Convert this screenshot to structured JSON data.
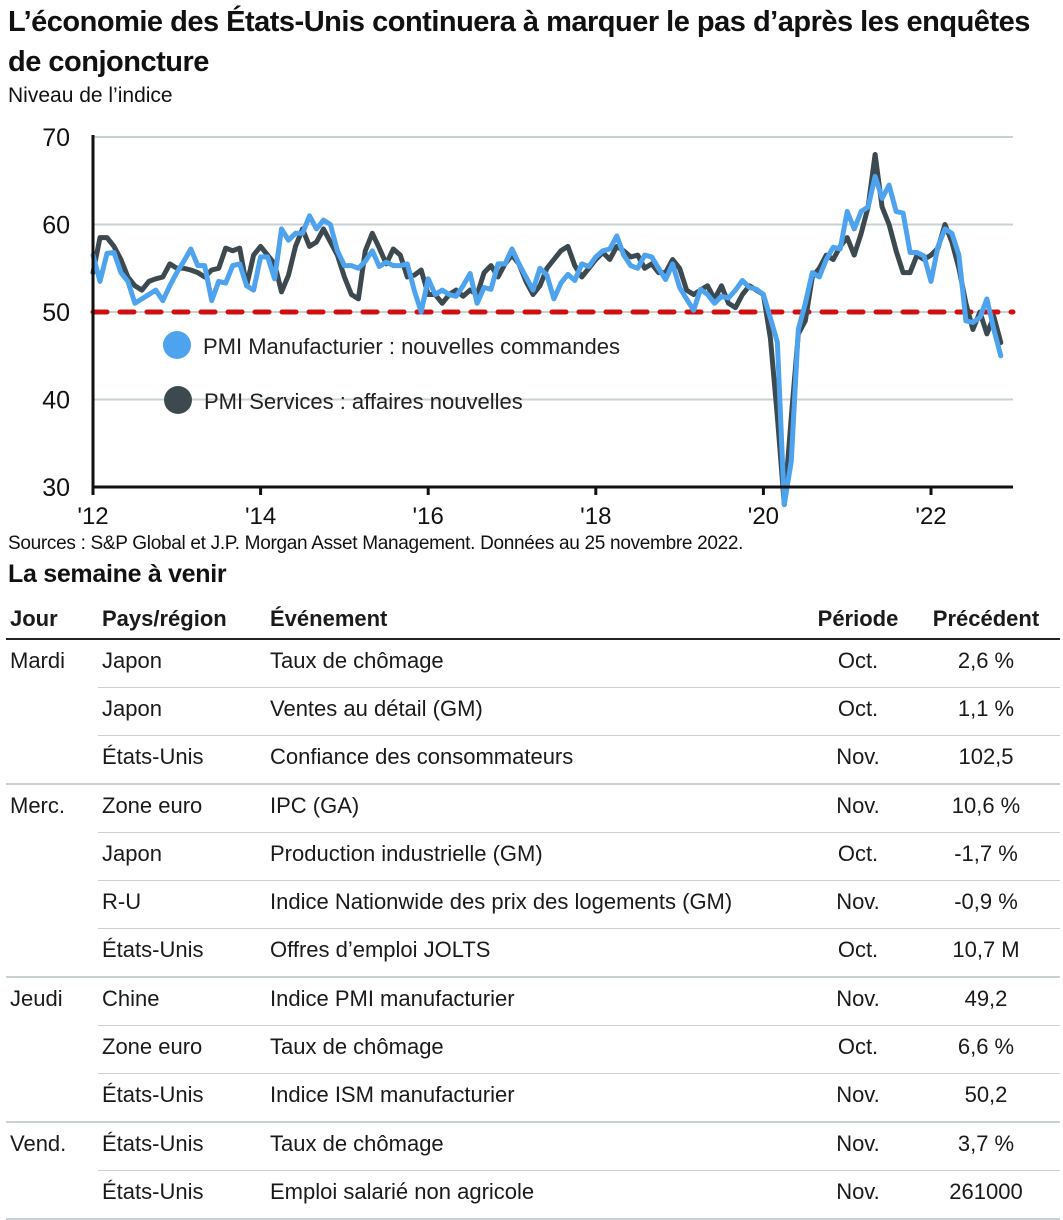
{
  "header": {
    "title": "L’économie des États-Unis continuera à marquer le pas d’après les enquêtes de conjoncture",
    "subtitle": "Niveau de l’indice"
  },
  "source": "Sources : S&P Global et J.P. Morgan Asset Management. Données au 25 novembre 2022.",
  "colors": {
    "manufacturing": "#4ea3ef",
    "services": "#3c4a50",
    "threshold": "#d01010",
    "grid": "#c8d2d2",
    "axis": "#111111"
  },
  "chart_data": {
    "type": "line",
    "title": "L’économie des États-Unis continuera à marquer le pas d’après les enquêtes de conjoncture",
    "ylabel": "Niveau de l’indice",
    "xlabel": "",
    "ylim": [
      30,
      70
    ],
    "yticks": [
      30,
      40,
      50,
      60,
      70
    ],
    "xlim": [
      "2012-01",
      "2022-12"
    ],
    "xticks": [
      {
        "year": 2012,
        "label": "'12"
      },
      {
        "year": 2014,
        "label": "'14"
      },
      {
        "year": 2016,
        "label": "'16"
      },
      {
        "year": 2018,
        "label": "'18"
      },
      {
        "year": 2020,
        "label": "'20"
      },
      {
        "year": 2022,
        "label": "'22"
      }
    ],
    "grid": true,
    "legend_position": "center-left",
    "reference_line": {
      "value": 50,
      "style": "dashed"
    },
    "x_start": "2012-01",
    "frequency": "monthly",
    "series": [
      {
        "name": "PMI Manufacturier : nouvelles commandes",
        "key": "manufacturing",
        "values": [
          56.5,
          53.5,
          56.7,
          56.8,
          54.5,
          53.5,
          51.0,
          51.5,
          52.0,
          52.5,
          51.3,
          53.0,
          54.5,
          55.8,
          57.2,
          55.3,
          55.3,
          51.3,
          53.5,
          53.3,
          55.3,
          55.5,
          53.0,
          52.5,
          56.3,
          56.3,
          53.8,
          59.5,
          58.2,
          59.0,
          59.0,
          61.0,
          59.5,
          60.5,
          60.0,
          57.0,
          55.3,
          55.3,
          55.0,
          55.8,
          57.0,
          55.2,
          55.7,
          55.3,
          55.3,
          55.5,
          52.5,
          50.0,
          53.8,
          52.0,
          52.5,
          52.0,
          51.8,
          53.0,
          54.4,
          51.0,
          52.8,
          52.6,
          55.5,
          55.5,
          57.2,
          55.5,
          54.0,
          52.5,
          55.0,
          54.2,
          51.5,
          53.3,
          54.3,
          53.6,
          55.5,
          55.2,
          56.3,
          57.0,
          57.2,
          58.7,
          56.5,
          55.3,
          55.0,
          56.5,
          56.3,
          55.0,
          53.7,
          55.5,
          52.8,
          51.5,
          50.2,
          52.6,
          52.0,
          51.0,
          51.8,
          51.6,
          52.5,
          53.6,
          52.8,
          52.6,
          52.0,
          49.3,
          46.5,
          28.0,
          33.0,
          48.0,
          51.0,
          54.5,
          54.0,
          56.0,
          57.4,
          57.2,
          61.5,
          59.5,
          61.5,
          62.0,
          65.5,
          63.0,
          64.5,
          61.5,
          61.3,
          56.8,
          56.8,
          56.4,
          53.5,
          57.5,
          59.5,
          59.0,
          56.5,
          49.0,
          48.8,
          49.4,
          51.5,
          48.0,
          45.0
        ]
      },
      {
        "name": "PMI Services : affaires nouvelles",
        "key": "services",
        "values": [
          54.5,
          58.5,
          58.5,
          57.5,
          56.0,
          54.0,
          53.0,
          52.5,
          53.5,
          53.8,
          54.0,
          55.5,
          55.0,
          55.0,
          54.8,
          54.5,
          54.0,
          54.8,
          55.0,
          57.3,
          57.0,
          57.3,
          53.0,
          56.5,
          57.5,
          56.5,
          55.5,
          52.3,
          54.2,
          57.5,
          59.5,
          57.5,
          58.0,
          59.5,
          58.0,
          56.5,
          54.0,
          52.0,
          51.5,
          57.0,
          59.0,
          57.3,
          55.5,
          57.2,
          56.5,
          54.0,
          54.2,
          54.8,
          52.0,
          52.0,
          51.0,
          52.0,
          52.5,
          51.8,
          52.5,
          52.0,
          54.5,
          55.3,
          54.0,
          55.5,
          56.5,
          55.5,
          53.5,
          52.0,
          53.0,
          55.0,
          56.0,
          57.0,
          57.5,
          55.3,
          54.0,
          55.0,
          56.0,
          56.8,
          56.0,
          57.5,
          57.0,
          56.3,
          56.5,
          55.0,
          55.5,
          54.5,
          54.5,
          56.0,
          55.0,
          52.5,
          52.0,
          52.5,
          53.0,
          51.5,
          53.0,
          51.0,
          50.5,
          52.0,
          53.0,
          52.5,
          52.0,
          47.0,
          38.0,
          28.0,
          38.0,
          47.5,
          49.0,
          54.0,
          55.0,
          56.5,
          56.0,
          57.5,
          58.5,
          56.5,
          59.0,
          62.0,
          68.0,
          62.0,
          60.0,
          57.0,
          54.5,
          54.5,
          56.5,
          56.0,
          56.5,
          57.3,
          60.0,
          58.0,
          55.0,
          51.0,
          48.0,
          50.0,
          47.5,
          49.5,
          46.5
        ]
      }
    ]
  },
  "legend": {
    "manufacturing": "PMI Manufacturier : nouvelles commandes",
    "services": "PMI Services : affaires nouvelles"
  },
  "table": {
    "section_title": "La semaine à venir",
    "headers": {
      "day": "Jour",
      "country": "Pays/région",
      "event": "Événement",
      "period": "Période",
      "previous": "Précédent"
    },
    "rows": [
      {
        "day": "Mardi",
        "country": "Japon",
        "event": "Taux de chômage",
        "period": "Oct.",
        "previous": "2,6 %"
      },
      {
        "day": "",
        "country": "Japon",
        "event": "Ventes au détail (GM)",
        "period": "Oct.",
        "previous": "1,1 %"
      },
      {
        "day": "",
        "country": "États-Unis",
        "event": "Confiance des consommateurs",
        "period": "Nov.",
        "previous": "102,5"
      },
      {
        "day": "Merc.",
        "country": "Zone euro",
        "event": "IPC (GA)",
        "period": "Nov.",
        "previous": "10,6 %"
      },
      {
        "day": "",
        "country": "Japon",
        "event": "Production industrielle (GM)",
        "period": "Oct.",
        "previous": "-1,7 %"
      },
      {
        "day": "",
        "country": "R-U",
        "event": "Indice Nationwide des prix des logements (GM)",
        "period": "Nov.",
        "previous": "-0,9 %"
      },
      {
        "day": "",
        "country": "États-Unis",
        "event": "Offres d’emploi JOLTS",
        "period": "Oct.",
        "previous": "10,7 M"
      },
      {
        "day": "Jeudi",
        "country": "Chine",
        "event": "Indice PMI manufacturier",
        "period": "Nov.",
        "previous": "49,2"
      },
      {
        "day": "",
        "country": "Zone euro",
        "event": "Taux de chômage",
        "period": "Oct.",
        "previous": "6,6 %"
      },
      {
        "day": "",
        "country": "États-Unis",
        "event": "Indice ISM manufacturier",
        "period": "Nov.",
        "previous": "50,2"
      },
      {
        "day": "Vend.",
        "country": "États-Unis",
        "event": "Taux de chômage",
        "period": "Nov.",
        "previous": "3,7 %"
      },
      {
        "day": "",
        "country": "États-Unis",
        "event": "Emploi salarié non agricole",
        "period": "Nov.",
        "previous": "261000"
      }
    ]
  }
}
